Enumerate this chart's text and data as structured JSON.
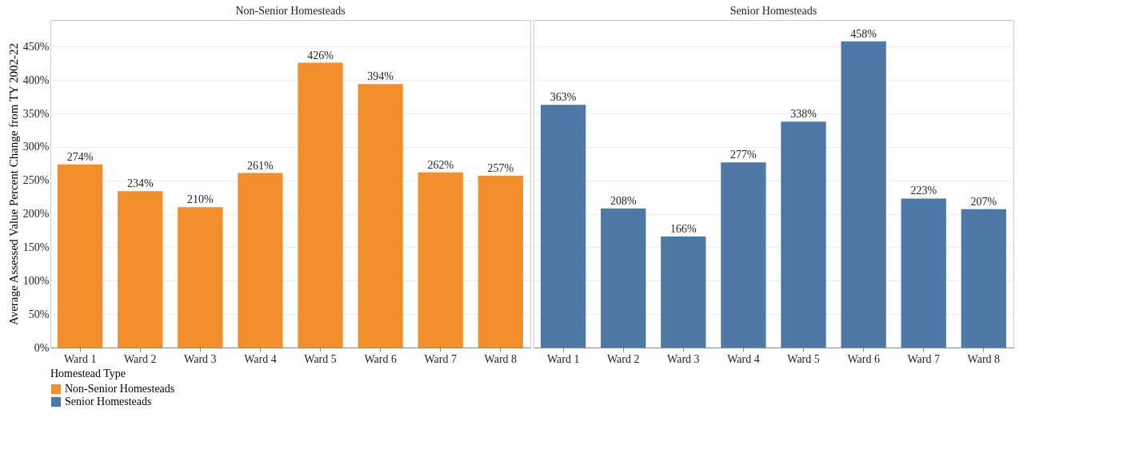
{
  "chart_data": [
    {
      "type": "bar",
      "title": "Non-Senior Homesteads",
      "ylabel": "Average Assessed Value Percent Change from TY 2002-22",
      "legend_title": "Homestead Type",
      "legend": "bottom left",
      "grid": "y",
      "categories": [
        "Ward 1",
        "Ward 2",
        "Ward 3",
        "Ward 4",
        "Ward 5",
        "Ward 6",
        "Ward 7",
        "Ward 8"
      ],
      "series": [
        {
          "name": "Non-Senior Homesteads",
          "color": "#f28e2b",
          "values": [
            274,
            234,
            210,
            261,
            426,
            394,
            262,
            257
          ],
          "value_labels": [
            "274%",
            "234%",
            "210%",
            "261%",
            "426%",
            "394%",
            "262%",
            "257%"
          ]
        }
      ],
      "ylim": [
        0,
        490
      ],
      "yticks": [
        {
          "value": 0,
          "label": "0%"
        },
        {
          "value": 50,
          "label": "50%"
        },
        {
          "value": 100,
          "label": "100%"
        },
        {
          "value": 150,
          "label": "150%"
        },
        {
          "value": 200,
          "label": "200%"
        },
        {
          "value": 250,
          "label": "250%"
        },
        {
          "value": 300,
          "label": "300%"
        },
        {
          "value": 350,
          "label": "350%"
        },
        {
          "value": 400,
          "label": "400%"
        },
        {
          "value": 450,
          "label": "450%"
        }
      ]
    },
    {
      "type": "bar",
      "title": "Senior Homesteads",
      "grid": "y",
      "tick_labels": "x",
      "categories": [
        "Ward 1",
        "Ward 2",
        "Ward 3",
        "Ward 4",
        "Ward 5",
        "Ward 6",
        "Ward 7",
        "Ward 8"
      ],
      "series": [
        {
          "name": "Senior Homesteads",
          "color": "#4e79a7",
          "values": [
            363,
            208,
            166,
            277,
            338,
            458,
            223,
            207
          ],
          "value_labels": [
            "363%",
            "208%",
            "166%",
            "277%",
            "338%",
            "458%",
            "223%",
            "207%"
          ]
        }
      ],
      "ylim": [
        0,
        490
      ],
      "yticks": [
        0,
        50,
        100,
        150,
        200,
        250,
        300,
        350,
        400,
        450
      ]
    }
  ]
}
